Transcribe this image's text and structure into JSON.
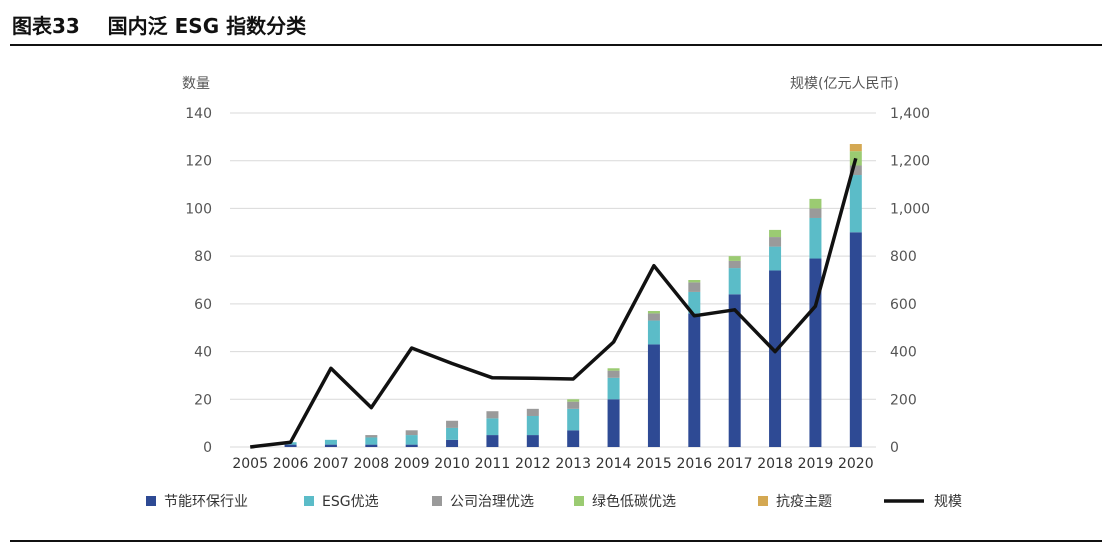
{
  "figure": {
    "title": "图表33    国内泛 ESG 指数分类"
  },
  "chart_data": {
    "type": "bar",
    "stacked": true,
    "categories": [
      "2005",
      "2006",
      "2007",
      "2008",
      "2009",
      "2010",
      "2011",
      "2012",
      "2013",
      "2014",
      "2015",
      "2016",
      "2017",
      "2018",
      "2019",
      "2020"
    ],
    "ylabel_left": "数量",
    "ylabel_right": "规模(亿元人民币)",
    "ylim_left": [
      0,
      140
    ],
    "ylim_right": [
      0,
      1400
    ],
    "yticks_left": [
      "0",
      "20",
      "40",
      "60",
      "80",
      "100",
      "120",
      "140"
    ],
    "yticks_right": [
      "0",
      "200",
      "400",
      "600",
      "800",
      "1,000",
      "1,200",
      "1,400"
    ],
    "grid": true,
    "legend_position": "bottom",
    "series": [
      {
        "name": "节能环保行业",
        "color": "#2e4a94",
        "axis": "left",
        "kind": "bar",
        "values": [
          0,
          1,
          1,
          1,
          1,
          3,
          5,
          5,
          7,
          20,
          43,
          56,
          64,
          74,
          79,
          90
        ]
      },
      {
        "name": "ESG优选",
        "color": "#5bbcc8",
        "axis": "left",
        "kind": "bar",
        "values": [
          0,
          1,
          2,
          3,
          4,
          5,
          7,
          8,
          9,
          9,
          10,
          9,
          11,
          10,
          17,
          24
        ]
      },
      {
        "name": "公司治理优选",
        "color": "#9a9a9a",
        "axis": "left",
        "kind": "bar",
        "values": [
          0,
          0,
          0,
          1,
          2,
          3,
          3,
          3,
          3,
          3,
          3,
          4,
          3,
          4,
          4,
          4
        ]
      },
      {
        "name": "绿色低碳优选",
        "color": "#9bcb72",
        "axis": "left",
        "kind": "bar",
        "values": [
          0,
          0,
          0,
          0,
          0,
          0,
          0,
          0,
          1,
          1,
          1,
          1,
          2,
          3,
          4,
          6
        ]
      },
      {
        "name": "抗疫主题",
        "color": "#d4a852",
        "axis": "left",
        "kind": "bar",
        "values": [
          0,
          0,
          0,
          0,
          0,
          0,
          0,
          0,
          0,
          0,
          0,
          0,
          0,
          0,
          0,
          3
        ]
      },
      {
        "name": "规模",
        "color": "#111111",
        "axis": "right",
        "kind": "line",
        "values": [
          0,
          20,
          330,
          165,
          415,
          350,
          290,
          288,
          285,
          440,
          760,
          550,
          575,
          400,
          590,
          1210
        ]
      }
    ]
  }
}
